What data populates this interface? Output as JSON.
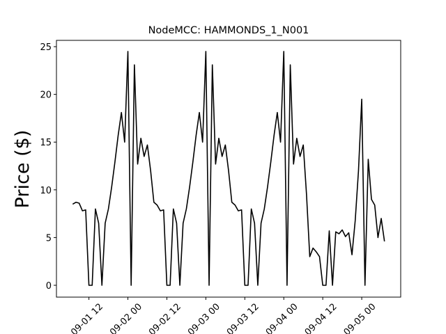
{
  "chart_data": {
    "type": "line",
    "title": "NodeMCC: HAMMONDS_1_N001",
    "y_label": "Price ($)",
    "color": "#000000",
    "x": [
      "09-01 07",
      "09-01 08",
      "09-01 09",
      "09-01 10",
      "09-01 11",
      "09-01 12",
      "09-01 13",
      "09-01 14",
      "09-01 15",
      "09-01 16",
      "09-01 17",
      "09-01 18",
      "09-01 19",
      "09-01 20",
      "09-01 21",
      "09-01 22",
      "09-01 23",
      "09-02 00",
      "09-02 01",
      "09-02 02",
      "09-02 03",
      "09-02 04",
      "09-02 05",
      "09-02 06",
      "09-02 07",
      "09-02 08",
      "09-02 09",
      "09-02 10",
      "09-02 11",
      "09-02 12",
      "09-02 13",
      "09-02 14",
      "09-02 15",
      "09-02 16",
      "09-02 17",
      "09-02 18",
      "09-02 19",
      "09-02 20",
      "09-02 21",
      "09-02 22",
      "09-02 23",
      "09-03 00",
      "09-03 01",
      "09-03 02",
      "09-03 03",
      "09-03 04",
      "09-03 05",
      "09-03 06",
      "09-03 07",
      "09-03 08",
      "09-03 09",
      "09-03 10",
      "09-03 11",
      "09-03 12",
      "09-03 13",
      "09-03 14",
      "09-03 15",
      "09-03 16",
      "09-03 17",
      "09-03 18",
      "09-03 19",
      "09-03 20",
      "09-03 21",
      "09-03 22",
      "09-03 23",
      "09-04 00",
      "09-04 01",
      "09-04 02",
      "09-04 03",
      "09-04 04",
      "09-04 05",
      "09-04 06",
      "09-04 07",
      "09-04 08",
      "09-04 09",
      "09-04 10",
      "09-04 11",
      "09-04 12",
      "09-04 13",
      "09-04 14",
      "09-04 15",
      "09-04 16",
      "09-04 17",
      "09-04 18",
      "09-04 19",
      "09-04 20",
      "09-04 21",
      "09-04 22",
      "09-04 23",
      "09-05 00",
      "09-05 01",
      "09-05 02",
      "09-05 03",
      "09-05 04",
      "09-05 05",
      "09-05 06",
      "09-05 07"
    ],
    "values": [
      8.5,
      8.7,
      8.6,
      7.8,
      7.9,
      0,
      0,
      8.0,
      6.5,
      0,
      6.5,
      8.0,
      10.3,
      12.9,
      15.7,
      18.1,
      15.0,
      24.5,
      0,
      23.1,
      12.7,
      15.4,
      13.5,
      14.7,
      12.0,
      8.7,
      8.4,
      7.8,
      7.9,
      0,
      0,
      8.0,
      6.5,
      0,
      6.5,
      8.0,
      10.3,
      12.9,
      15.7,
      18.1,
      15.0,
      24.5,
      0,
      23.1,
      12.7,
      15.4,
      13.5,
      14.7,
      12.0,
      8.7,
      8.4,
      7.8,
      7.9,
      0,
      0,
      8.0,
      6.5,
      0,
      6.5,
      8.0,
      10.3,
      12.9,
      15.7,
      18.1,
      15.0,
      24.5,
      0,
      23.1,
      12.7,
      15.4,
      13.5,
      14.7,
      9.5,
      3.0,
      3.9,
      3.5,
      3.0,
      0,
      0,
      5.7,
      0,
      5.6,
      5.4,
      5.8,
      5.1,
      5.5,
      3.2,
      6.8,
      12.0,
      19.5,
      0,
      13.2,
      9.0,
      8.4,
      5.0,
      7.0,
      4.6
    ],
    "xlim": [
      "09-01 02",
      "09-05 12"
    ],
    "xticks": [
      "09-01 12",
      "09-02 00",
      "09-02 12",
      "09-03 00",
      "09-03 12",
      "09-04 00",
      "09-04 12",
      "09-05 00"
    ],
    "ylim": [
      -1.24,
      25.66
    ],
    "yticks": [
      0,
      5,
      10,
      15,
      20,
      25
    ]
  }
}
